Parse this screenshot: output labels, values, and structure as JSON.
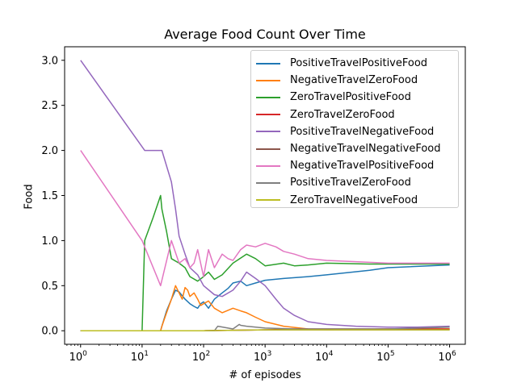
{
  "chart_data": {
    "type": "line",
    "title": "Average Food Count Over Time",
    "xlabel": "# of episodes",
    "ylabel": "Food",
    "xscale": "log",
    "xlim": [
      0.55,
      1800000
    ],
    "ylim": [
      -0.15,
      3.15
    ],
    "x_ticks": [
      {
        "value": 1,
        "base": "10",
        "exp": "0"
      },
      {
        "value": 10,
        "base": "10",
        "exp": "1"
      },
      {
        "value": 100,
        "base": "10",
        "exp": "2"
      },
      {
        "value": 1000,
        "base": "10",
        "exp": "3"
      },
      {
        "value": 10000,
        "base": "10",
        "exp": "4"
      },
      {
        "value": 100000,
        "base": "10",
        "exp": "5"
      },
      {
        "value": 1000000,
        "base": "10",
        "exp": "6"
      }
    ],
    "y_ticks": [
      "0.0",
      "0.5",
      "1.0",
      "1.5",
      "2.0",
      "2.5",
      "3.0"
    ],
    "grid": false,
    "legend_position": "top-right",
    "series": [
      {
        "name": "PositiveTravelPositiveFood",
        "color": "#1f77b4",
        "x": [
          1,
          20,
          21,
          25,
          30,
          35,
          40,
          50,
          60,
          70,
          80,
          90,
          100,
          120,
          150,
          200,
          250,
          300,
          400,
          500,
          700,
          1000,
          2000,
          5000,
          10000,
          50000,
          100000,
          1000000
        ],
        "y": [
          0,
          0,
          0.05,
          0.22,
          0.35,
          0.45,
          0.43,
          0.35,
          0.3,
          0.27,
          0.25,
          0.3,
          0.32,
          0.25,
          0.35,
          0.42,
          0.47,
          0.53,
          0.55,
          0.5,
          0.53,
          0.56,
          0.58,
          0.6,
          0.62,
          0.67,
          0.7,
          0.73
        ]
      },
      {
        "name": "NegativeTravelZeroFood",
        "color": "#ff7f0e",
        "x": [
          1,
          20,
          21,
          25,
          30,
          35,
          40,
          45,
          50,
          55,
          60,
          70,
          80,
          90,
          100,
          120,
          150,
          200,
          300,
          400,
          500,
          700,
          1000,
          2000,
          5000,
          10000,
          100000,
          1000000
        ],
        "y": [
          0,
          0,
          0.05,
          0.2,
          0.35,
          0.5,
          0.42,
          0.35,
          0.48,
          0.45,
          0.38,
          0.42,
          0.35,
          0.28,
          0.3,
          0.33,
          0.25,
          0.2,
          0.25,
          0.22,
          0.2,
          0.15,
          0.1,
          0.05,
          0.02,
          0.01,
          0.02,
          0.02
        ]
      },
      {
        "name": "ZeroTravelPositiveFood",
        "color": "#2ca02c",
        "x": [
          1,
          10,
          11,
          15,
          20,
          21,
          25,
          30,
          40,
          50,
          60,
          80,
          100,
          120,
          150,
          200,
          300,
          500,
          700,
          1000,
          2000,
          3000,
          5000,
          10000,
          50000,
          100000,
          1000000
        ],
        "y": [
          0,
          0,
          1.0,
          1.25,
          1.5,
          1.35,
          1.1,
          0.8,
          0.75,
          0.7,
          0.6,
          0.55,
          0.6,
          0.65,
          0.57,
          0.62,
          0.75,
          0.85,
          0.8,
          0.72,
          0.75,
          0.72,
          0.73,
          0.75,
          0.74,
          0.74,
          0.74
        ]
      },
      {
        "name": "ZeroTravelZeroFood",
        "color": "#d62728",
        "x": [
          1,
          100,
          1000,
          3000,
          10000,
          100000,
          1000000
        ],
        "y": [
          0,
          0,
          0.01,
          0.02,
          0.02,
          0.02,
          0.02
        ]
      },
      {
        "name": "PositiveTravelNegativeFood",
        "color": "#9467bd",
        "x": [
          1,
          11,
          21,
          30,
          35,
          40,
          50,
          60,
          80,
          100,
          150,
          200,
          300,
          400,
          500,
          700,
          1000,
          1500,
          2000,
          3000,
          5000,
          10000,
          30000,
          100000,
          300000,
          1000000
        ],
        "y": [
          3.0,
          2.0,
          2.0,
          1.65,
          1.35,
          1.05,
          0.85,
          0.7,
          0.62,
          0.5,
          0.4,
          0.38,
          0.45,
          0.55,
          0.65,
          0.58,
          0.5,
          0.35,
          0.25,
          0.17,
          0.1,
          0.07,
          0.05,
          0.04,
          0.04,
          0.05
        ]
      },
      {
        "name": "NegativeTravelNegativeFood",
        "color": "#8c564b",
        "x": [
          1,
          100,
          1000,
          10000,
          100000,
          1000000
        ],
        "y": [
          0,
          0,
          0.01,
          0.01,
          0.01,
          0.01
        ]
      },
      {
        "name": "NegativeTravelPositiveFood",
        "color": "#e377c2",
        "x": [
          1,
          10,
          20,
          30,
          40,
          50,
          60,
          70,
          80,
          100,
          120,
          150,
          200,
          250,
          300,
          400,
          500,
          700,
          1000,
          1500,
          2000,
          3000,
          5000,
          10000,
          100000,
          1000000
        ],
        "y": [
          2.0,
          1.0,
          0.5,
          1.0,
          0.75,
          0.8,
          0.7,
          0.75,
          0.9,
          0.6,
          0.9,
          0.7,
          0.85,
          0.8,
          0.78,
          0.9,
          0.95,
          0.93,
          0.97,
          0.93,
          0.88,
          0.85,
          0.8,
          0.78,
          0.75,
          0.75
        ]
      },
      {
        "name": "PositiveTravelZeroFood",
        "color": "#7f7f7f",
        "x": [
          1,
          150,
          170,
          300,
          380,
          400,
          500,
          1000,
          3000,
          10000,
          100000,
          1000000
        ],
        "y": [
          0,
          0,
          0.05,
          0.02,
          0.07,
          0.06,
          0.05,
          0.03,
          0.02,
          0.02,
          0.02,
          0.04
        ]
      },
      {
        "name": "ZeroTravelNegativeFood",
        "color": "#bcbd22",
        "x": [
          1,
          100,
          1000,
          10000,
          100000,
          1000000
        ],
        "y": [
          0,
          0,
          0.01,
          0.01,
          0.01,
          0.01
        ]
      }
    ]
  }
}
